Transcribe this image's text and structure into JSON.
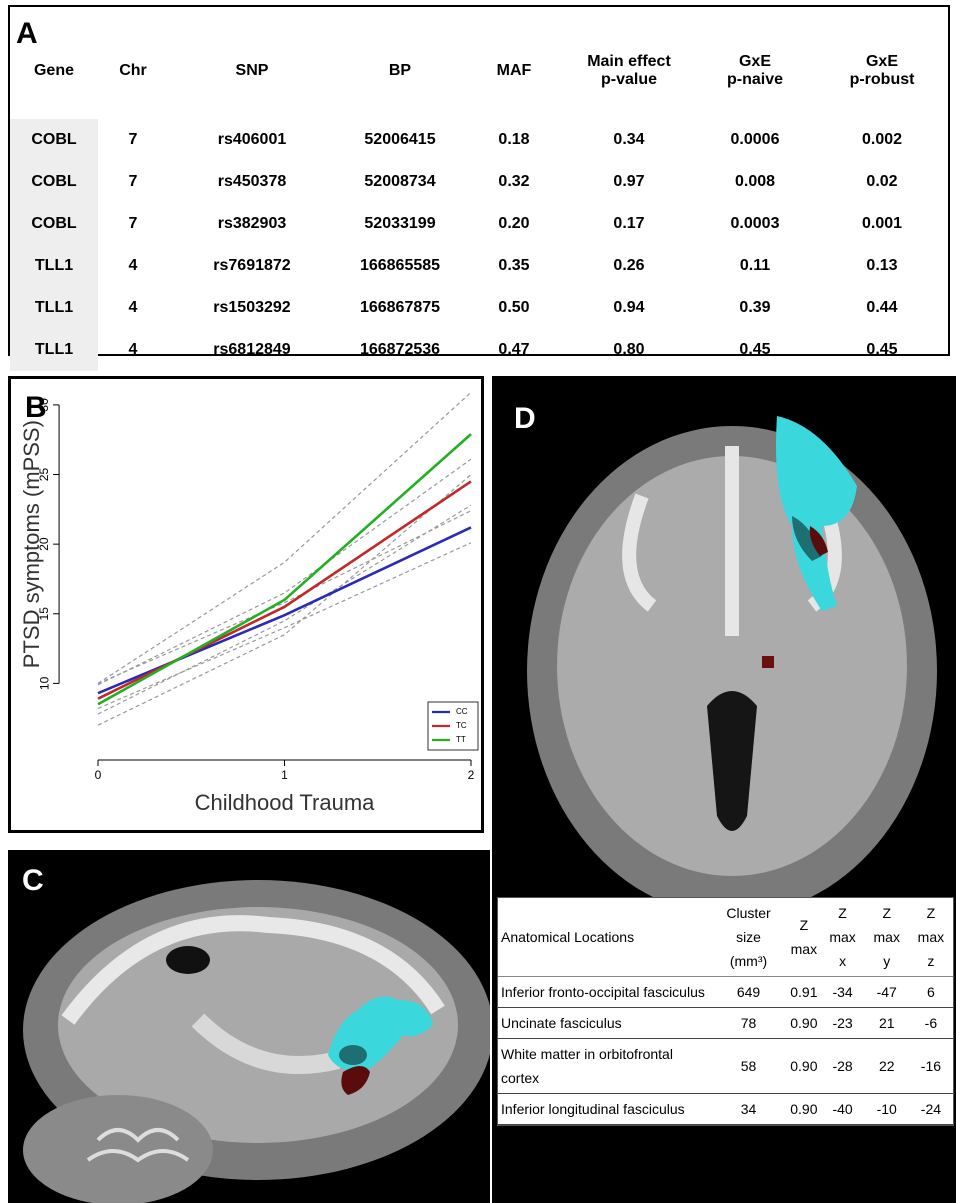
{
  "table_a": {
    "label": "A",
    "header": [
      "Gene",
      "Chr",
      "SNP",
      "BP",
      "MAF",
      "Main effect\np-value",
      "GxE\np-naive",
      "GxE\np-robust"
    ],
    "rows": [
      [
        "COBL",
        "7",
        "rs406001",
        "52006415",
        "0.18",
        "0.34",
        "0.0006",
        "0.002"
      ],
      [
        "COBL",
        "7",
        "rs450378",
        "52008734",
        "0.32",
        "0.97",
        "0.008",
        "0.02"
      ],
      [
        "COBL",
        "7",
        "rs382903",
        "52033199",
        "0.20",
        "0.17",
        "0.0003",
        "0.001"
      ],
      [
        "TLL1",
        "4",
        "rs7691872",
        "166865585",
        "0.35",
        "0.26",
        "0.11",
        "0.13"
      ],
      [
        "TLL1",
        "4",
        "rs1503292",
        "166867875",
        "0.50",
        "0.94",
        "0.39",
        "0.44"
      ],
      [
        "TLL1",
        "4",
        "rs6812849",
        "166872536",
        "0.47",
        "0.80",
        "0.45",
        "0.45"
      ]
    ]
  },
  "chart_data": {
    "type": "line",
    "label": "B",
    "x_label": "Childhood Trauma",
    "y_label": "PTSD symptoms (mPSS)",
    "x": [
      0,
      1,
      2
    ],
    "xlim": [
      -0.08,
      2.08
    ],
    "xticks": [
      0,
      1,
      2
    ],
    "ylim": [
      4.5,
      31.5
    ],
    "yticks": [
      10,
      15,
      20,
      25,
      30
    ],
    "legend": "bottom-right",
    "series": [
      {
        "name": "CC",
        "color": "#2a2ab8",
        "values": [
          9.3,
          14.9,
          21.2
        ],
        "lower": [
          8.2,
          14.0,
          20.1
        ],
        "upper": [
          10.0,
          15.8,
          22.4
        ]
      },
      {
        "name": "TC",
        "color": "#c0282a",
        "values": [
          8.9,
          15.5,
          24.5
        ],
        "lower": [
          7.8,
          14.5,
          22.8
        ],
        "upper": [
          9.9,
          16.5,
          26.1
        ]
      },
      {
        "name": "TT",
        "color": "#22b022",
        "values": [
          8.5,
          16.0,
          27.9
        ],
        "lower": [
          7.0,
          13.5,
          25.0
        ],
        "upper": [
          10.0,
          18.7,
          30.9
        ]
      }
    ]
  },
  "figure_c": {
    "label": "C"
  },
  "figure_d": {
    "label": "D",
    "table": {
      "header": [
        "Anatomical Locations",
        "Cluster size\n(mm³)",
        "Z\nmax",
        "Z max\nx",
        "Z max\ny",
        "Z max\nz"
      ],
      "rows": [
        [
          "Inferior fronto-occipital fasciculus",
          "649",
          "0.91",
          "-34",
          "-47",
          "6"
        ],
        [
          "Uncinate fasciculus",
          "78",
          "0.90",
          "-23",
          "21",
          "-6"
        ],
        [
          "White matter in orbitofrontal cortex",
          "58",
          "0.90",
          "-28",
          "22",
          "-16"
        ],
        [
          "Inferior longitudinal fasciculus",
          "34",
          "0.90",
          "-40",
          "-10",
          "-24"
        ]
      ]
    }
  }
}
